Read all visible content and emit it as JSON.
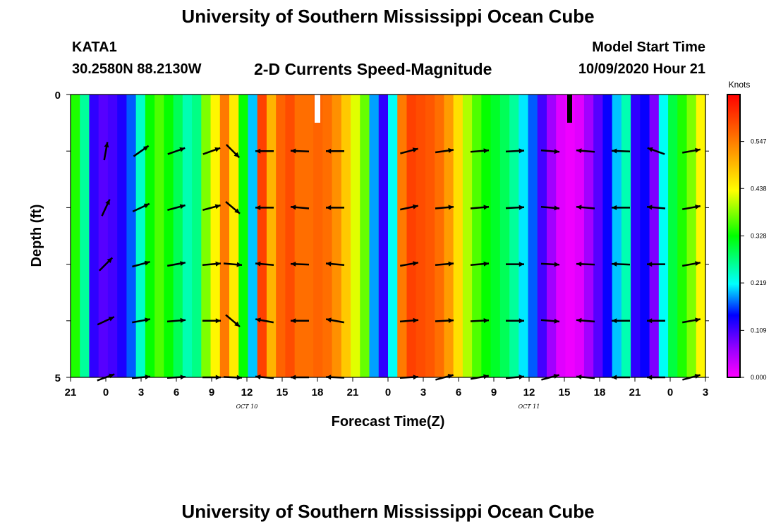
{
  "header": {
    "title_top": "University of Southern Mississippi Ocean Cube",
    "station": "KATA1",
    "coords": "30.2580N 88.2130W",
    "product": "2-D Currents Speed-Magnitude",
    "model_start_label": "Model Start Time",
    "model_start_value": "10/09/2020 Hour 21",
    "title_bottom": "University of Southern Mississippi Ocean Cube"
  },
  "chart_data": {
    "type": "heatmap",
    "xlabel": "Forecast Time(Z)",
    "ylabel": "Depth (ft)",
    "x_tick_labels": [
      "21",
      "0",
      "3",
      "6",
      "9",
      "12",
      "15",
      "18",
      "21",
      "0",
      "3",
      "6",
      "9",
      "12",
      "15",
      "18",
      "21",
      "0",
      "3"
    ],
    "date_labels": [
      {
        "text": "OCT 10",
        "at_tick": 5
      },
      {
        "text": "OCT 11",
        "at_tick": 13
      }
    ],
    "y_tick_labels": [
      "0",
      "5"
    ],
    "ylim": [
      0,
      5
    ],
    "colorbar": {
      "unit": "Knots",
      "range": [
        0.0,
        0.656
      ],
      "tick_labels": [
        "0.547",
        "0.438",
        "0.328",
        "0.219",
        "0.109",
        "0.000"
      ],
      "tick_values": [
        0.547,
        0.438,
        0.328,
        0.219,
        0.109,
        0.0
      ]
    },
    "speed_columns_knots": [
      0.34,
      0.26,
      0.12,
      0.1,
      0.11,
      0.13,
      0.17,
      0.24,
      0.33,
      0.36,
      0.33,
      0.29,
      0.25,
      0.27,
      0.38,
      0.44,
      0.55,
      0.45,
      0.33,
      0.2,
      0.6,
      0.5,
      0.57,
      0.59,
      0.56,
      0.56,
      0.57,
      0.56,
      0.53,
      0.48,
      0.42,
      0.37,
      0.19,
      0.12,
      0.22,
      0.55,
      0.6,
      0.59,
      0.58,
      0.56,
      0.52,
      0.46,
      0.4,
      0.36,
      0.33,
      0.31,
      0.29,
      0.26,
      0.21,
      0.17,
      0.11,
      0.06,
      0.02,
      0.01,
      0.02,
      0.06,
      0.1,
      0.14,
      0.2,
      0.25,
      0.12,
      0.14,
      0.08,
      0.22,
      0.3,
      0.34,
      0.38,
      0.44
    ],
    "vectors": {
      "depths_ft": [
        1,
        2,
        3,
        4,
        5
      ],
      "directions_deg": [
        {
          "x": 1.0,
          "deg": [
            80,
            65,
            45,
            25,
            20
          ]
        },
        {
          "x": 2.0,
          "deg": [
            35,
            25,
            15,
            10,
            5
          ]
        },
        {
          "x": 3.0,
          "deg": [
            20,
            15,
            10,
            5,
            3
          ]
        },
        {
          "x": 4.0,
          "deg": [
            20,
            15,
            5,
            0,
            0
          ]
        },
        {
          "x": 4.6,
          "deg": [
            -45,
            -40,
            -5,
            -40,
            -2
          ]
        },
        {
          "x": 5.5,
          "deg": [
            180,
            180,
            175,
            170,
            175
          ]
        },
        {
          "x": 6.5,
          "deg": [
            178,
            175,
            178,
            180,
            180
          ]
        },
        {
          "x": 7.5,
          "deg": [
            180,
            180,
            175,
            170,
            178
          ]
        },
        {
          "x": 9.6,
          "deg": [
            15,
            12,
            10,
            5,
            3
          ]
        },
        {
          "x": 10.6,
          "deg": [
            8,
            5,
            5,
            3,
            15
          ]
        },
        {
          "x": 11.6,
          "deg": [
            5,
            5,
            5,
            3,
            10
          ]
        },
        {
          "x": 12.6,
          "deg": [
            3,
            3,
            0,
            0,
            5
          ]
        },
        {
          "x": 13.6,
          "deg": [
            -5,
            -5,
            -3,
            -5,
            15
          ]
        },
        {
          "x": 14.6,
          "deg": [
            175,
            175,
            178,
            175,
            175
          ]
        },
        {
          "x": 15.6,
          "deg": [
            178,
            180,
            178,
            180,
            180
          ]
        },
        {
          "x": 16.6,
          "deg": [
            160,
            175,
            180,
            180,
            180
          ]
        },
        {
          "x": 17.6,
          "deg": [
            10,
            10,
            10,
            10,
            15
          ]
        }
      ]
    }
  }
}
